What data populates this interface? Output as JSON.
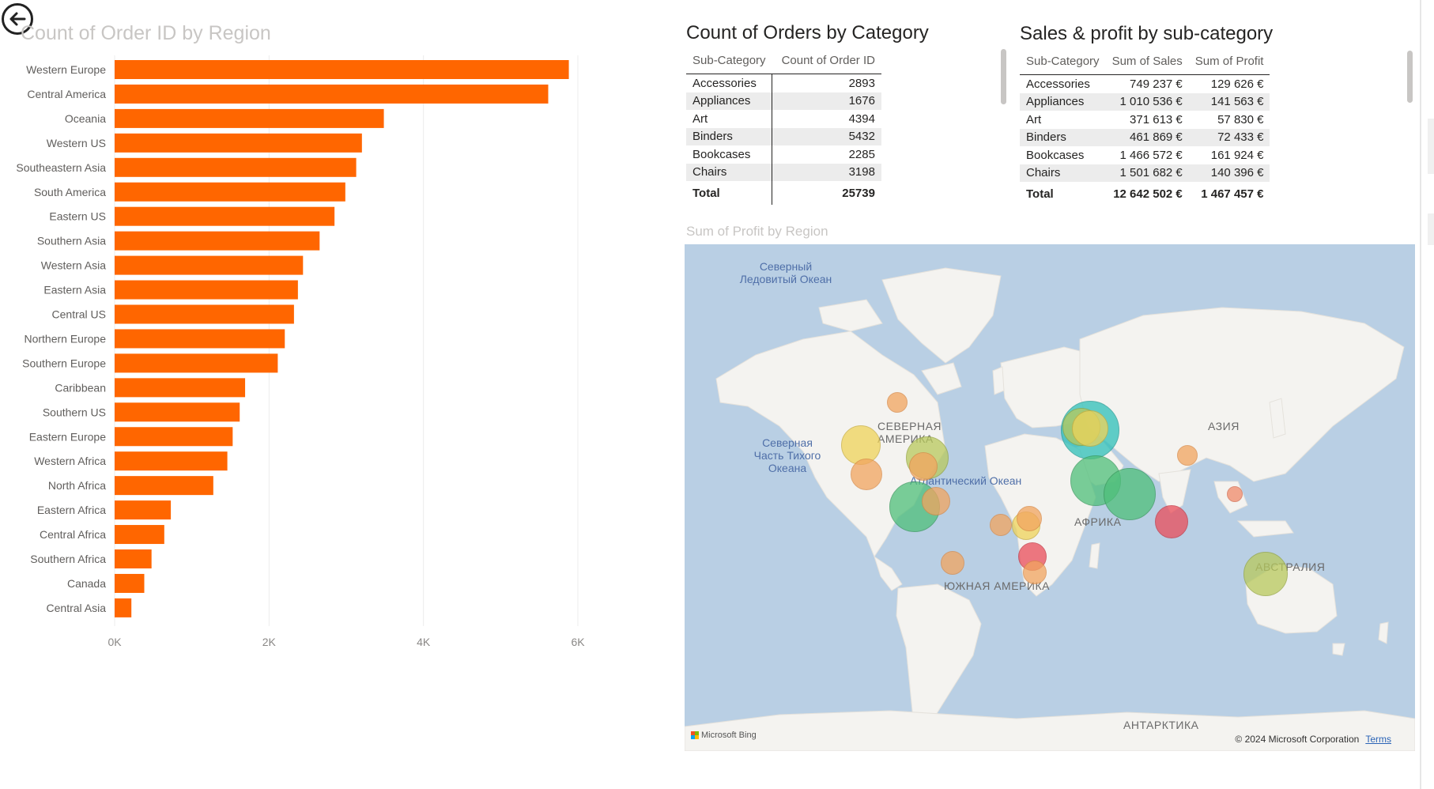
{
  "bar_visual": {
    "title": "Count of Order ID by Region",
    "chart_data": {
      "type": "bar",
      "orientation": "horizontal",
      "title": "Count of Order ID by Region",
      "categories": [
        "Western Europe",
        "Central America",
        "Oceania",
        "Western US",
        "Southeastern Asia",
        "South America",
        "Eastern US",
        "Southern Asia",
        "Western Asia",
        "Eastern Asia",
        "Central US",
        "Northern Europe",
        "Southern Europe",
        "Caribbean",
        "Southern US",
        "Eastern Europe",
        "Western Africa",
        "North Africa",
        "Eastern Africa",
        "Central Africa",
        "Southern Africa",
        "Canada",
        "Central Asia"
      ],
      "values": [
        5883,
        5616,
        3487,
        3203,
        3129,
        2988,
        2848,
        2655,
        2440,
        2374,
        2323,
        2204,
        2113,
        1690,
        1620,
        1529,
        1460,
        1278,
        728,
        643,
        478,
        384,
        217
      ],
      "xlim": [
        0,
        6000
      ],
      "xticks": [
        "0K",
        "2K",
        "4K",
        "6K"
      ],
      "xtick_values": [
        0,
        2000,
        4000,
        6000
      ],
      "bar_color": "#ff6600",
      "grid": true
    }
  },
  "orders_table": {
    "title": "Count of Orders by Category",
    "headers": [
      "Sub-Category",
      "Count of Order ID"
    ],
    "rows": [
      [
        "Accessories",
        "2893"
      ],
      [
        "Appliances",
        "1676"
      ],
      [
        "Art",
        "4394"
      ],
      [
        "Binders",
        "5432"
      ],
      [
        "Bookcases",
        "2285"
      ],
      [
        "Chairs",
        "3198"
      ]
    ],
    "total": [
      "Total",
      "25739"
    ]
  },
  "sales_table": {
    "title": "Sales & profit by sub-category",
    "headers": [
      "Sub-Category",
      "Sum of Sales",
      "Sum of Profit"
    ],
    "rows": [
      [
        "Accessories",
        "749 237 €",
        "129 626 €"
      ],
      [
        "Appliances",
        "1 010 536 €",
        "141 563 €"
      ],
      [
        "Art",
        "371 613 €",
        "57 830 €"
      ],
      [
        "Binders",
        "461 869 €",
        "72 433 €"
      ],
      [
        "Bookcases",
        "1 466 572 €",
        "161 924 €"
      ],
      [
        "Chairs",
        "1 501 682 €",
        "140 396 €"
      ]
    ],
    "total": [
      "Total",
      "12 642 502 €",
      "1 467 457 €"
    ]
  },
  "map_visual": {
    "title": "Sum of Profit by Region",
    "ocean_labels": {
      "arctic": "Северный Ледовитый Океан",
      "atlantic": "Атлантический Океан",
      "pacific": "Северная Часть Тихого Океана"
    },
    "continent_labels": {
      "north_america": "СЕВЕРНАЯ АМЕРИКА",
      "south_america": "ЮЖНАЯ АМЕРИКА",
      "asia": "АЗИЯ",
      "africa": "АФРИКА",
      "australia": "АВСТРАЛИЯ",
      "antarctica": "АНТАРКТИКА"
    },
    "attribution": "Microsoft Bing",
    "copyright": "© 2024 Microsoft Corporation",
    "terms_link": "Terms",
    "colors": {
      "ocean": "#b9cfe4",
      "land": "#f4f3f0",
      "orange": "#f2a55f",
      "yellow": "#efd35a",
      "yellow_green": "#b8c95c",
      "green": "#4fbf7a",
      "teal": "#2ec0b8",
      "red": "#ea4d5a"
    }
  },
  "icons": {
    "back": "back-arrow-icon",
    "bing": "microsoft-logo-icon"
  }
}
